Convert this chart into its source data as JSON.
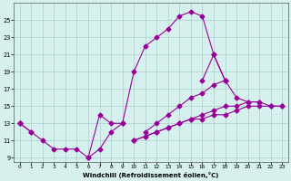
{
  "xlabel": "Windchill (Refroidissement éolien,°C)",
  "background_color": "#d6f0ee",
  "line_color": "#990099",
  "x_values": [
    0,
    1,
    2,
    3,
    4,
    5,
    6,
    7,
    8,
    9,
    10,
    11,
    12,
    13,
    14,
    15,
    16,
    17,
    18,
    19,
    20,
    21,
    22,
    23
  ],
  "series_upper": [
    13,
    12,
    null,
    null,
    null,
    null,
    null,
    null,
    null,
    null,
    null,
    null,
    null,
    null,
    null,
    null,
    null,
    null,
    null,
    null,
    null,
    null,
    null,
    null
  ],
  "series_main": [
    13,
    12,
    11,
    10,
    10,
    10,
    9,
    10,
    12,
    13,
    19,
    22,
    23,
    24,
    25.5,
    26,
    25.5,
    21,
    18,
    null,
    null,
    null,
    null,
    null
  ],
  "series_bump": [
    null,
    null,
    null,
    null,
    null,
    null,
    9,
    14,
    13,
    13,
    null,
    null,
    null,
    null,
    null,
    null,
    null,
    null,
    null,
    null,
    null,
    null,
    null,
    null
  ],
  "series_high_end": [
    null,
    null,
    null,
    null,
    null,
    null,
    null,
    null,
    null,
    null,
    null,
    null,
    null,
    null,
    null,
    null,
    18,
    21,
    18,
    16,
    15.5,
    15.5,
    null,
    null
  ],
  "series_mid": [
    13,
    null,
    null,
    null,
    null,
    null,
    null,
    null,
    null,
    null,
    null,
    12,
    13,
    14,
    15,
    16,
    16.5,
    17.5,
    18,
    null,
    null,
    null,
    null,
    null
  ],
  "series_lower1": [
    null,
    null,
    null,
    null,
    null,
    null,
    null,
    null,
    null,
    null,
    11,
    11.5,
    12,
    12.5,
    13,
    13.5,
    14,
    14.5,
    15,
    15,
    15.5,
    15.5,
    15,
    15
  ],
  "series_lower2": [
    null,
    null,
    null,
    null,
    null,
    null,
    null,
    null,
    null,
    null,
    11,
    11.5,
    12,
    12.5,
    13,
    13.5,
    13.5,
    14,
    14,
    14.5,
    15,
    15,
    15,
    15
  ],
  "ylim": [
    8.5,
    27
  ],
  "xlim": [
    -0.5,
    23.5
  ],
  "yticks": [
    9,
    11,
    13,
    15,
    17,
    19,
    21,
    23,
    25
  ],
  "xticks": [
    0,
    1,
    2,
    3,
    4,
    5,
    6,
    7,
    8,
    9,
    10,
    11,
    12,
    13,
    14,
    15,
    16,
    17,
    18,
    19,
    20,
    21,
    22,
    23
  ],
  "grid_color": "#aacfcc",
  "markersize": 2.5
}
